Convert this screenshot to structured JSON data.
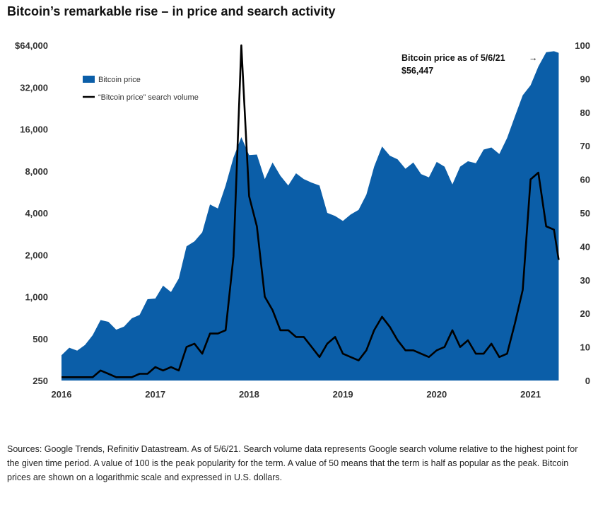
{
  "title": "Bitcoin’s remarkable rise – in price and search activity",
  "footnote": "Sources: Google Trends, Refinitiv Datastream. As of 5/6/21. Search volume data represents Google search volume relative to the highest point for the given time period. A value of 100 is the peak popularity for the term. A value of 50 means that the term is half as popular as the peak. Bitcoin prices are shown on a logarithmic scale and expressed in U.S. dollars.",
  "chart_data": {
    "type": "area",
    "x_tick_labels": [
      "2016",
      "2017",
      "2018",
      "2019",
      "2020",
      "2021"
    ],
    "x_tick_values": [
      2016.0,
      2017.0,
      2018.0,
      2019.0,
      2020.0,
      2021.0
    ],
    "xlim": [
      2016.0,
      2021.35
    ],
    "y_left": {
      "scale": "log",
      "lim": [
        250,
        64000
      ],
      "tick_values": [
        250,
        500,
        1000,
        2000,
        4000,
        8000,
        16000,
        32000,
        64000
      ],
      "tick_labels": [
        "250",
        "500",
        "1,000",
        "2,000",
        "4,000",
        "8,000",
        "16,000",
        "32,000",
        "$64,000"
      ]
    },
    "y_right": {
      "scale": "linear",
      "lim": [
        0,
        100
      ],
      "tick_values": [
        0,
        10,
        20,
        30,
        40,
        50,
        60,
        70,
        80,
        90,
        100
      ],
      "tick_labels": [
        "0",
        "10",
        "20",
        "30",
        "40",
        "50",
        "60",
        "70",
        "80",
        "90",
        "100"
      ]
    },
    "legend_position": "top-left",
    "grid": false,
    "colors": {
      "price_area": "#0b5ea8",
      "search_line": "#000000"
    },
    "series": [
      {
        "name": "Bitcoin price",
        "kind": "area",
        "axis": "left",
        "x": [
          2016.0,
          2016.083,
          2016.167,
          2016.25,
          2016.333,
          2016.417,
          2016.5,
          2016.583,
          2016.667,
          2016.75,
          2016.833,
          2016.917,
          2017.0,
          2017.083,
          2017.167,
          2017.25,
          2017.333,
          2017.417,
          2017.5,
          2017.583,
          2017.667,
          2017.75,
          2017.833,
          2017.917,
          2018.0,
          2018.083,
          2018.167,
          2018.25,
          2018.333,
          2018.417,
          2018.5,
          2018.583,
          2018.667,
          2018.75,
          2018.833,
          2018.917,
          2019.0,
          2019.083,
          2019.167,
          2019.25,
          2019.333,
          2019.417,
          2019.5,
          2019.583,
          2019.667,
          2019.75,
          2019.833,
          2019.917,
          2020.0,
          2020.083,
          2020.167,
          2020.25,
          2020.333,
          2020.417,
          2020.5,
          2020.583,
          2020.667,
          2020.75,
          2020.833,
          2020.917,
          2021.0,
          2021.083,
          2021.167,
          2021.25,
          2021.3
        ],
        "values": [
          380,
          430,
          410,
          450,
          530,
          680,
          660,
          580,
          610,
          700,
          740,
          960,
          970,
          1200,
          1080,
          1350,
          2300,
          2500,
          2900,
          4600,
          4300,
          6300,
          10000,
          14000,
          10400,
          10500,
          7000,
          9200,
          7400,
          6300,
          7700,
          7000,
          6600,
          6300,
          4000,
          3800,
          3500,
          3900,
          4200,
          5400,
          8600,
          12000,
          10300,
          9700,
          8300,
          9200,
          7600,
          7200,
          9300,
          8600,
          6400,
          8600,
          9400,
          9100,
          11400,
          11800,
          10600,
          13800,
          19700,
          28000,
          33000,
          45000,
          57000,
          58000,
          56447
        ]
      },
      {
        "name": "“Bitcoin price” search volume",
        "kind": "line",
        "axis": "right",
        "x": [
          2016.0,
          2016.083,
          2016.167,
          2016.25,
          2016.333,
          2016.417,
          2016.5,
          2016.583,
          2016.667,
          2016.75,
          2016.833,
          2016.917,
          2017.0,
          2017.083,
          2017.167,
          2017.25,
          2017.333,
          2017.417,
          2017.5,
          2017.583,
          2017.667,
          2017.75,
          2017.833,
          2017.917,
          2018.0,
          2018.083,
          2018.167,
          2018.25,
          2018.333,
          2018.417,
          2018.5,
          2018.583,
          2018.667,
          2018.75,
          2018.833,
          2018.917,
          2019.0,
          2019.083,
          2019.167,
          2019.25,
          2019.333,
          2019.417,
          2019.5,
          2019.583,
          2019.667,
          2019.75,
          2019.833,
          2019.917,
          2020.0,
          2020.083,
          2020.167,
          2020.25,
          2020.333,
          2020.417,
          2020.5,
          2020.583,
          2020.667,
          2020.75,
          2020.833,
          2020.917,
          2021.0,
          2021.083,
          2021.167,
          2021.25,
          2021.3
        ],
        "values": [
          1,
          1,
          1,
          1,
          1,
          3,
          2,
          1,
          1,
          1,
          2,
          2,
          4,
          3,
          4,
          3,
          10,
          11,
          8,
          14,
          14,
          15,
          37,
          100,
          55,
          46,
          25,
          21,
          15,
          15,
          13,
          13,
          10,
          7,
          11,
          13,
          8,
          7,
          6,
          9,
          15,
          19,
          16,
          12,
          9,
          9,
          8,
          7,
          9,
          10,
          15,
          10,
          12,
          8,
          8,
          11,
          7,
          8,
          17,
          27,
          60,
          62,
          46,
          45,
          36
        ]
      }
    ],
    "annotation": {
      "text": "Bitcoin price as of 5/6/21",
      "value_text": "$56,447",
      "arrow": "→"
    }
  }
}
